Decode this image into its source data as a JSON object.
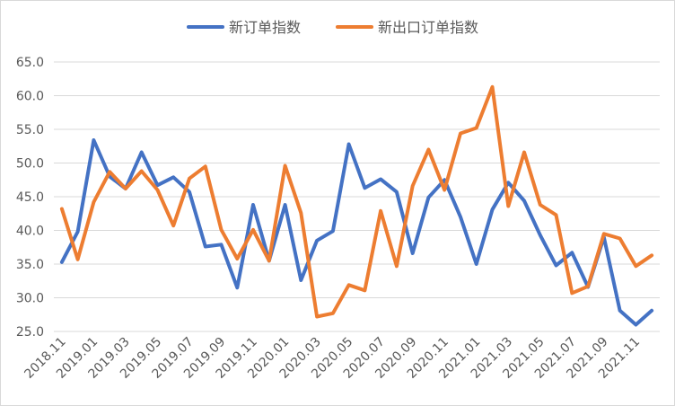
{
  "chart_data": {
    "type": "line",
    "title": "",
    "xlabel": "",
    "ylabel": "",
    "ylim": [
      25,
      65
    ],
    "ytick_step": 5,
    "ytick_labels": [
      "25.0",
      "30.0",
      "35.0",
      "40.0",
      "45.0",
      "50.0",
      "55.0",
      "60.0",
      "65.0"
    ],
    "grid": "horizontal",
    "legend_position": "top-center",
    "x": [
      "2018.11",
      "2018.12",
      "2019.01",
      "2019.02",
      "2019.03",
      "2019.04",
      "2019.05",
      "2019.06",
      "2019.07",
      "2019.08",
      "2019.09",
      "2019.10",
      "2019.11",
      "2019.12",
      "2020.01",
      "2020.02",
      "2020.03",
      "2020.04",
      "2020.05",
      "2020.06",
      "2020.07",
      "2020.08",
      "2020.09",
      "2020.10",
      "2020.11",
      "2020.12",
      "2021.01",
      "2021.02",
      "2021.03",
      "2021.04",
      "2021.05",
      "2021.06",
      "2021.07",
      "2021.08",
      "2021.09",
      "2021.10",
      "2021.11",
      "2021.12"
    ],
    "x_tick_labels": [
      "2018.11",
      "2019.01",
      "2019.03",
      "2019.05",
      "2019.07",
      "2019.09",
      "2019.11",
      "2020.01",
      "2020.03",
      "2020.05",
      "2020.07",
      "2020.09",
      "2020.11",
      "2021.01",
      "2021.03",
      "2021.05",
      "2021.07",
      "2021.09",
      "2021.11"
    ],
    "series": [
      {
        "name": "新订单指数",
        "color": "#4472c4",
        "values": [
          35.3,
          39.8,
          53.4,
          48.0,
          46.2,
          51.6,
          46.7,
          47.9,
          45.7,
          37.6,
          37.9,
          31.5,
          43.8,
          35.5,
          43.8,
          32.6,
          38.5,
          39.9,
          52.8,
          46.3,
          47.6,
          45.7,
          36.6,
          44.9,
          47.5,
          42.0,
          35.0,
          43.1,
          47.1,
          44.4,
          39.3,
          34.8,
          36.7,
          31.6,
          39.0,
          28.1,
          26.0,
          28.1
        ]
      },
      {
        "name": "新出口订单指数",
        "color": "#ed7d31",
        "values": [
          43.2,
          35.7,
          44.2,
          48.7,
          46.2,
          48.8,
          46.0,
          40.7,
          47.7,
          49.5,
          40.1,
          35.8,
          40.1,
          35.5,
          49.6,
          42.6,
          27.2,
          27.7,
          31.9,
          31.1,
          42.9,
          34.7,
          46.6,
          52.0,
          46.0,
          54.4,
          55.2,
          61.3,
          43.6,
          51.6,
          43.8,
          42.3,
          30.7,
          31.7,
          39.5,
          38.8,
          34.7,
          36.3
        ]
      }
    ]
  }
}
